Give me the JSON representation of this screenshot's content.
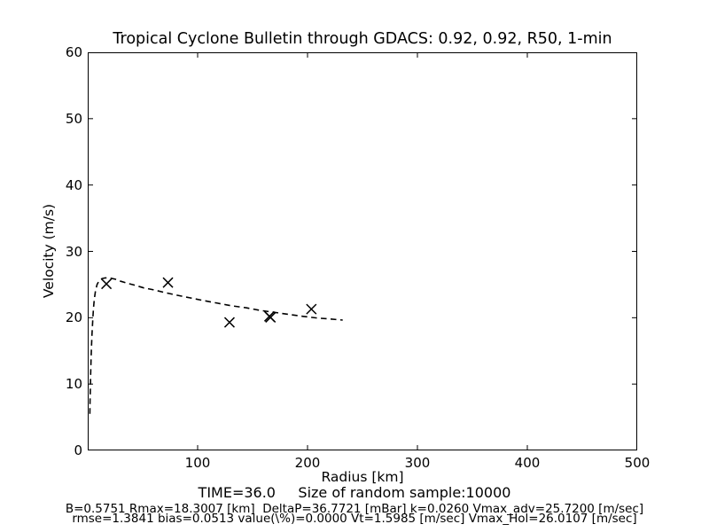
{
  "colors": {
    "background": "#ffffff",
    "foreground": "#000000"
  },
  "chart_data": {
    "type": "line",
    "title": "Tropical Cyclone Bulletin through GDACS: 0.92, 0.92, R50, 1-min",
    "xlabel": "Radius [km]",
    "ylabel": "Velocity (m/s)",
    "xlim": [
      0,
      500
    ],
    "ylim": [
      0,
      60
    ],
    "x_ticks": [
      100,
      200,
      300,
      400,
      500
    ],
    "y_ticks": [
      0,
      10,
      20,
      30,
      40,
      50,
      60
    ],
    "grid": false,
    "legend": "none",
    "series": [
      {
        "name": "holland-profile-fit",
        "style": "dashed-line",
        "points": [
          [
            1.9,
            5.5
          ],
          [
            2.1,
            7.5
          ],
          [
            2.4,
            9.5
          ],
          [
            2.7,
            11.5
          ],
          [
            3.0,
            13.5
          ],
          [
            3.4,
            15.5
          ],
          [
            3.9,
            17.5
          ],
          [
            4.5,
            19.5
          ],
          [
            5.2,
            21.3
          ],
          [
            6.0,
            22.8
          ],
          [
            7.0,
            24.0
          ],
          [
            8.5,
            25.0
          ],
          [
            10.5,
            25.6
          ],
          [
            13,
            25.9
          ],
          [
            16,
            26.0
          ],
          [
            18.3,
            26.0
          ],
          [
            21,
            25.95
          ],
          [
            25,
            25.8
          ],
          [
            30,
            25.5
          ],
          [
            36,
            25.2
          ],
          [
            43,
            24.9
          ],
          [
            51,
            24.5
          ],
          [
            60,
            24.2
          ],
          [
            70,
            23.8
          ],
          [
            81,
            23.4
          ],
          [
            93,
            23.0
          ],
          [
            105,
            22.6
          ],
          [
            118,
            22.2
          ],
          [
            131,
            21.8
          ],
          [
            144,
            21.5
          ],
          [
            157,
            21.1
          ],
          [
            170,
            20.8
          ],
          [
            183,
            20.5
          ],
          [
            196,
            20.2
          ],
          [
            209,
            19.95
          ],
          [
            221,
            19.8
          ],
          [
            232,
            19.65
          ]
        ]
      },
      {
        "name": "bulletin-observations",
        "style": "x-markers",
        "points": [
          [
            17,
            25.1
          ],
          [
            73,
            25.3
          ],
          [
            129,
            19.3
          ],
          [
            165.3,
            20.2
          ],
          [
            166.3,
            20.05
          ],
          [
            203.5,
            21.3
          ]
        ]
      }
    ]
  },
  "footer": {
    "line1": "TIME=36.0     Size of random sample:10000",
    "line2": "B=0.5751 Rmax=18.3007 [km]  DeltaP=36.7721 [mBar] k=0.0260 Vmax_adv=25.7200 [m/sec]",
    "line3": "rmse=1.3841 bias=0.0513 value(\\%)=0.0000 Vt=1.5985 [m/sec] Vmax_Hol=26.0107 [m/sec]"
  }
}
